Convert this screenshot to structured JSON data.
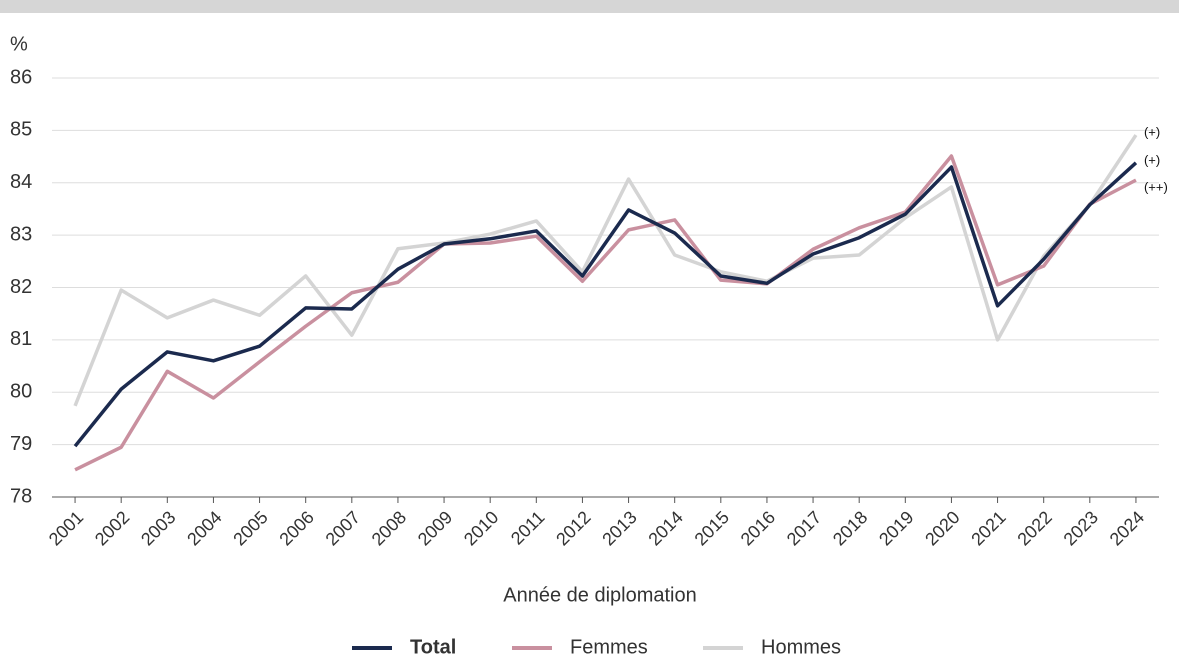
{
  "chart_data": {
    "type": "line",
    "y_label": "%",
    "x_label": "Année de diplomation",
    "categories": [
      "2001",
      "2002",
      "2003",
      "2004",
      "2005",
      "2006",
      "2007",
      "2008",
      "2009",
      "2010",
      "2011",
      "2012",
      "2013",
      "2014",
      "2015",
      "2016",
      "2017",
      "2018",
      "2019",
      "2020",
      "2021",
      "2022",
      "2023",
      "2024"
    ],
    "series": [
      {
        "name": "Total",
        "color": "#1b2a4e",
        "values": [
          78.97,
          80.06,
          80.77,
          80.6,
          80.88,
          81.61,
          81.59,
          82.35,
          82.83,
          82.93,
          83.08,
          82.22,
          83.48,
          83.04,
          82.22,
          82.08,
          82.64,
          82.95,
          83.4,
          84.3,
          81.65,
          82.54,
          83.58,
          84.38
        ]
      },
      {
        "name": "Femmes",
        "color": "#c9909f",
        "values": [
          78.52,
          78.95,
          80.4,
          79.89,
          80.58,
          81.26,
          81.9,
          82.1,
          82.83,
          82.85,
          82.98,
          82.12,
          83.1,
          83.29,
          82.14,
          82.07,
          82.73,
          83.14,
          83.44,
          84.51,
          82.05,
          82.41,
          83.59,
          84.05
        ]
      },
      {
        "name": "Hommes",
        "color": "#d4d4d4",
        "values": [
          79.74,
          81.95,
          81.42,
          81.76,
          81.47,
          82.22,
          81.09,
          82.74,
          82.85,
          83.02,
          83.27,
          82.3,
          84.07,
          82.62,
          82.3,
          82.12,
          82.56,
          82.62,
          83.33,
          83.92,
          81.0,
          82.6,
          83.58,
          84.91
        ]
      }
    ],
    "annotations": [
      {
        "series": 2,
        "text": "(+)"
      },
      {
        "series": 0,
        "text": "(+)"
      },
      {
        "series": 1,
        "text": "(++)"
      }
    ],
    "ylim": [
      78,
      86
    ],
    "yticks": [
      78,
      79,
      80,
      81,
      82,
      83,
      84,
      85,
      86
    ],
    "grid": true,
    "legend": "bottom"
  }
}
